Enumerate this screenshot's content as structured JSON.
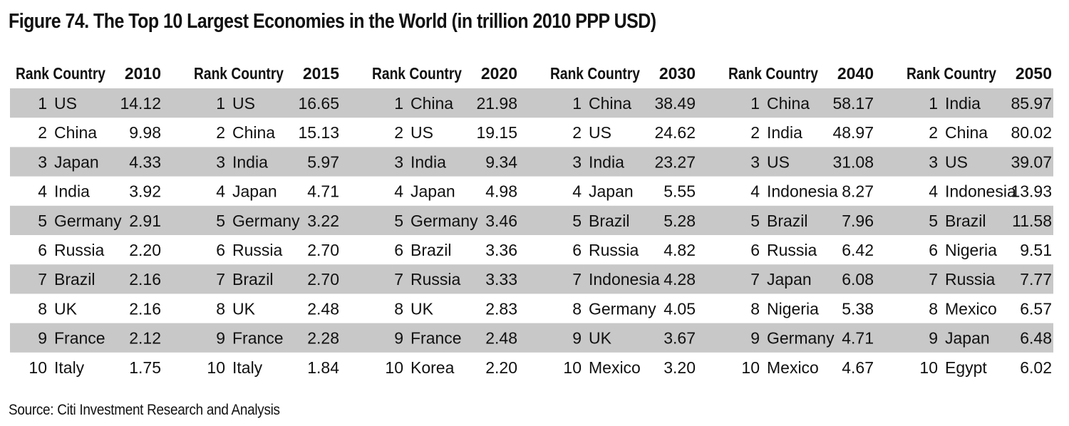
{
  "title": "Figure 74. The Top 10 Largest Economies in the World (in trillion 2010 PPP USD)",
  "source": "Source: Citi Investment Research and Analysis",
  "colors": {
    "band": "#c8c8c9",
    "text": "#111111",
    "background": "#ffffff"
  },
  "chart_data": {
    "type": "table",
    "title": "Figure 74. The Top 10 Largest Economies in the World (in trillion 2010 PPP USD)",
    "rank_header": "Rank Country",
    "groups": [
      {
        "year": "2010",
        "rows": [
          {
            "rank": "1",
            "country": "US",
            "value": "14.12"
          },
          {
            "rank": "2",
            "country": "China",
            "value": "9.98"
          },
          {
            "rank": "3",
            "country": "Japan",
            "value": "4.33"
          },
          {
            "rank": "4",
            "country": "India",
            "value": "3.92"
          },
          {
            "rank": "5",
            "country": "Germany",
            "value": "2.91"
          },
          {
            "rank": "6",
            "country": "Russia",
            "value": "2.20"
          },
          {
            "rank": "7",
            "country": "Brazil",
            "value": "2.16"
          },
          {
            "rank": "8",
            "country": "UK",
            "value": "2.16"
          },
          {
            "rank": "9",
            "country": "France",
            "value": "2.12"
          },
          {
            "rank": "10",
            "country": "Italy",
            "value": "1.75"
          }
        ]
      },
      {
        "year": "2015",
        "rows": [
          {
            "rank": "1",
            "country": "US",
            "value": "16.65"
          },
          {
            "rank": "2",
            "country": "China",
            "value": "15.13"
          },
          {
            "rank": "3",
            "country": "India",
            "value": "5.97"
          },
          {
            "rank": "4",
            "country": "Japan",
            "value": "4.71"
          },
          {
            "rank": "5",
            "country": "Germany",
            "value": "3.22"
          },
          {
            "rank": "6",
            "country": "Russia",
            "value": "2.70"
          },
          {
            "rank": "7",
            "country": "Brazil",
            "value": "2.70"
          },
          {
            "rank": "8",
            "country": "UK",
            "value": "2.48"
          },
          {
            "rank": "9",
            "country": "France",
            "value": "2.28"
          },
          {
            "rank": "10",
            "country": "Italy",
            "value": "1.84"
          }
        ]
      },
      {
        "year": "2020",
        "rows": [
          {
            "rank": "1",
            "country": "China",
            "value": "21.98"
          },
          {
            "rank": "2",
            "country": "US",
            "value": "19.15"
          },
          {
            "rank": "3",
            "country": "India",
            "value": "9.34"
          },
          {
            "rank": "4",
            "country": "Japan",
            "value": "4.98"
          },
          {
            "rank": "5",
            "country": "Germany",
            "value": "3.46"
          },
          {
            "rank": "6",
            "country": "Brazil",
            "value": "3.36"
          },
          {
            "rank": "7",
            "country": "Russia",
            "value": "3.33"
          },
          {
            "rank": "8",
            "country": "UK",
            "value": "2.83"
          },
          {
            "rank": "9",
            "country": "France",
            "value": "2.48"
          },
          {
            "rank": "10",
            "country": "Korea",
            "value": "2.20"
          }
        ]
      },
      {
        "year": "2030",
        "rows": [
          {
            "rank": "1",
            "country": "China",
            "value": "38.49"
          },
          {
            "rank": "2",
            "country": "US",
            "value": "24.62"
          },
          {
            "rank": "3",
            "country": "India",
            "value": "23.27"
          },
          {
            "rank": "4",
            "country": "Japan",
            "value": "5.55"
          },
          {
            "rank": "5",
            "country": "Brazil",
            "value": "5.28"
          },
          {
            "rank": "6",
            "country": "Russia",
            "value": "4.82"
          },
          {
            "rank": "7",
            "country": "Indonesia",
            "value": "4.28"
          },
          {
            "rank": "8",
            "country": "Germany",
            "value": "4.05"
          },
          {
            "rank": "9",
            "country": "UK",
            "value": "3.67"
          },
          {
            "rank": "10",
            "country": "Mexico",
            "value": "3.20"
          }
        ]
      },
      {
        "year": "2040",
        "rows": [
          {
            "rank": "1",
            "country": "China",
            "value": "58.17"
          },
          {
            "rank": "2",
            "country": "India",
            "value": "48.97"
          },
          {
            "rank": "3",
            "country": "US",
            "value": "31.08"
          },
          {
            "rank": "4",
            "country": "Indonesia",
            "value": "8.27"
          },
          {
            "rank": "5",
            "country": "Brazil",
            "value": "7.96"
          },
          {
            "rank": "6",
            "country": "Russia",
            "value": "6.42"
          },
          {
            "rank": "7",
            "country": "Japan",
            "value": "6.08"
          },
          {
            "rank": "8",
            "country": "Nigeria",
            "value": "5.38"
          },
          {
            "rank": "9",
            "country": "Germany",
            "value": "4.71"
          },
          {
            "rank": "10",
            "country": "Mexico",
            "value": "4.67"
          }
        ]
      },
      {
        "year": "2050",
        "rows": [
          {
            "rank": "1",
            "country": "India",
            "value": "85.97"
          },
          {
            "rank": "2",
            "country": "China",
            "value": "80.02"
          },
          {
            "rank": "3",
            "country": "US",
            "value": "39.07"
          },
          {
            "rank": "4",
            "country": "Indonesia",
            "value": "13.93"
          },
          {
            "rank": "5",
            "country": "Brazil",
            "value": "11.58"
          },
          {
            "rank": "6",
            "country": "Nigeria",
            "value": "9.51"
          },
          {
            "rank": "7",
            "country": "Russia",
            "value": "7.77"
          },
          {
            "rank": "8",
            "country": "Mexico",
            "value": "6.57"
          },
          {
            "rank": "9",
            "country": "Japan",
            "value": "6.48"
          },
          {
            "rank": "10",
            "country": "Egypt",
            "value": "6.02"
          }
        ]
      }
    ]
  }
}
